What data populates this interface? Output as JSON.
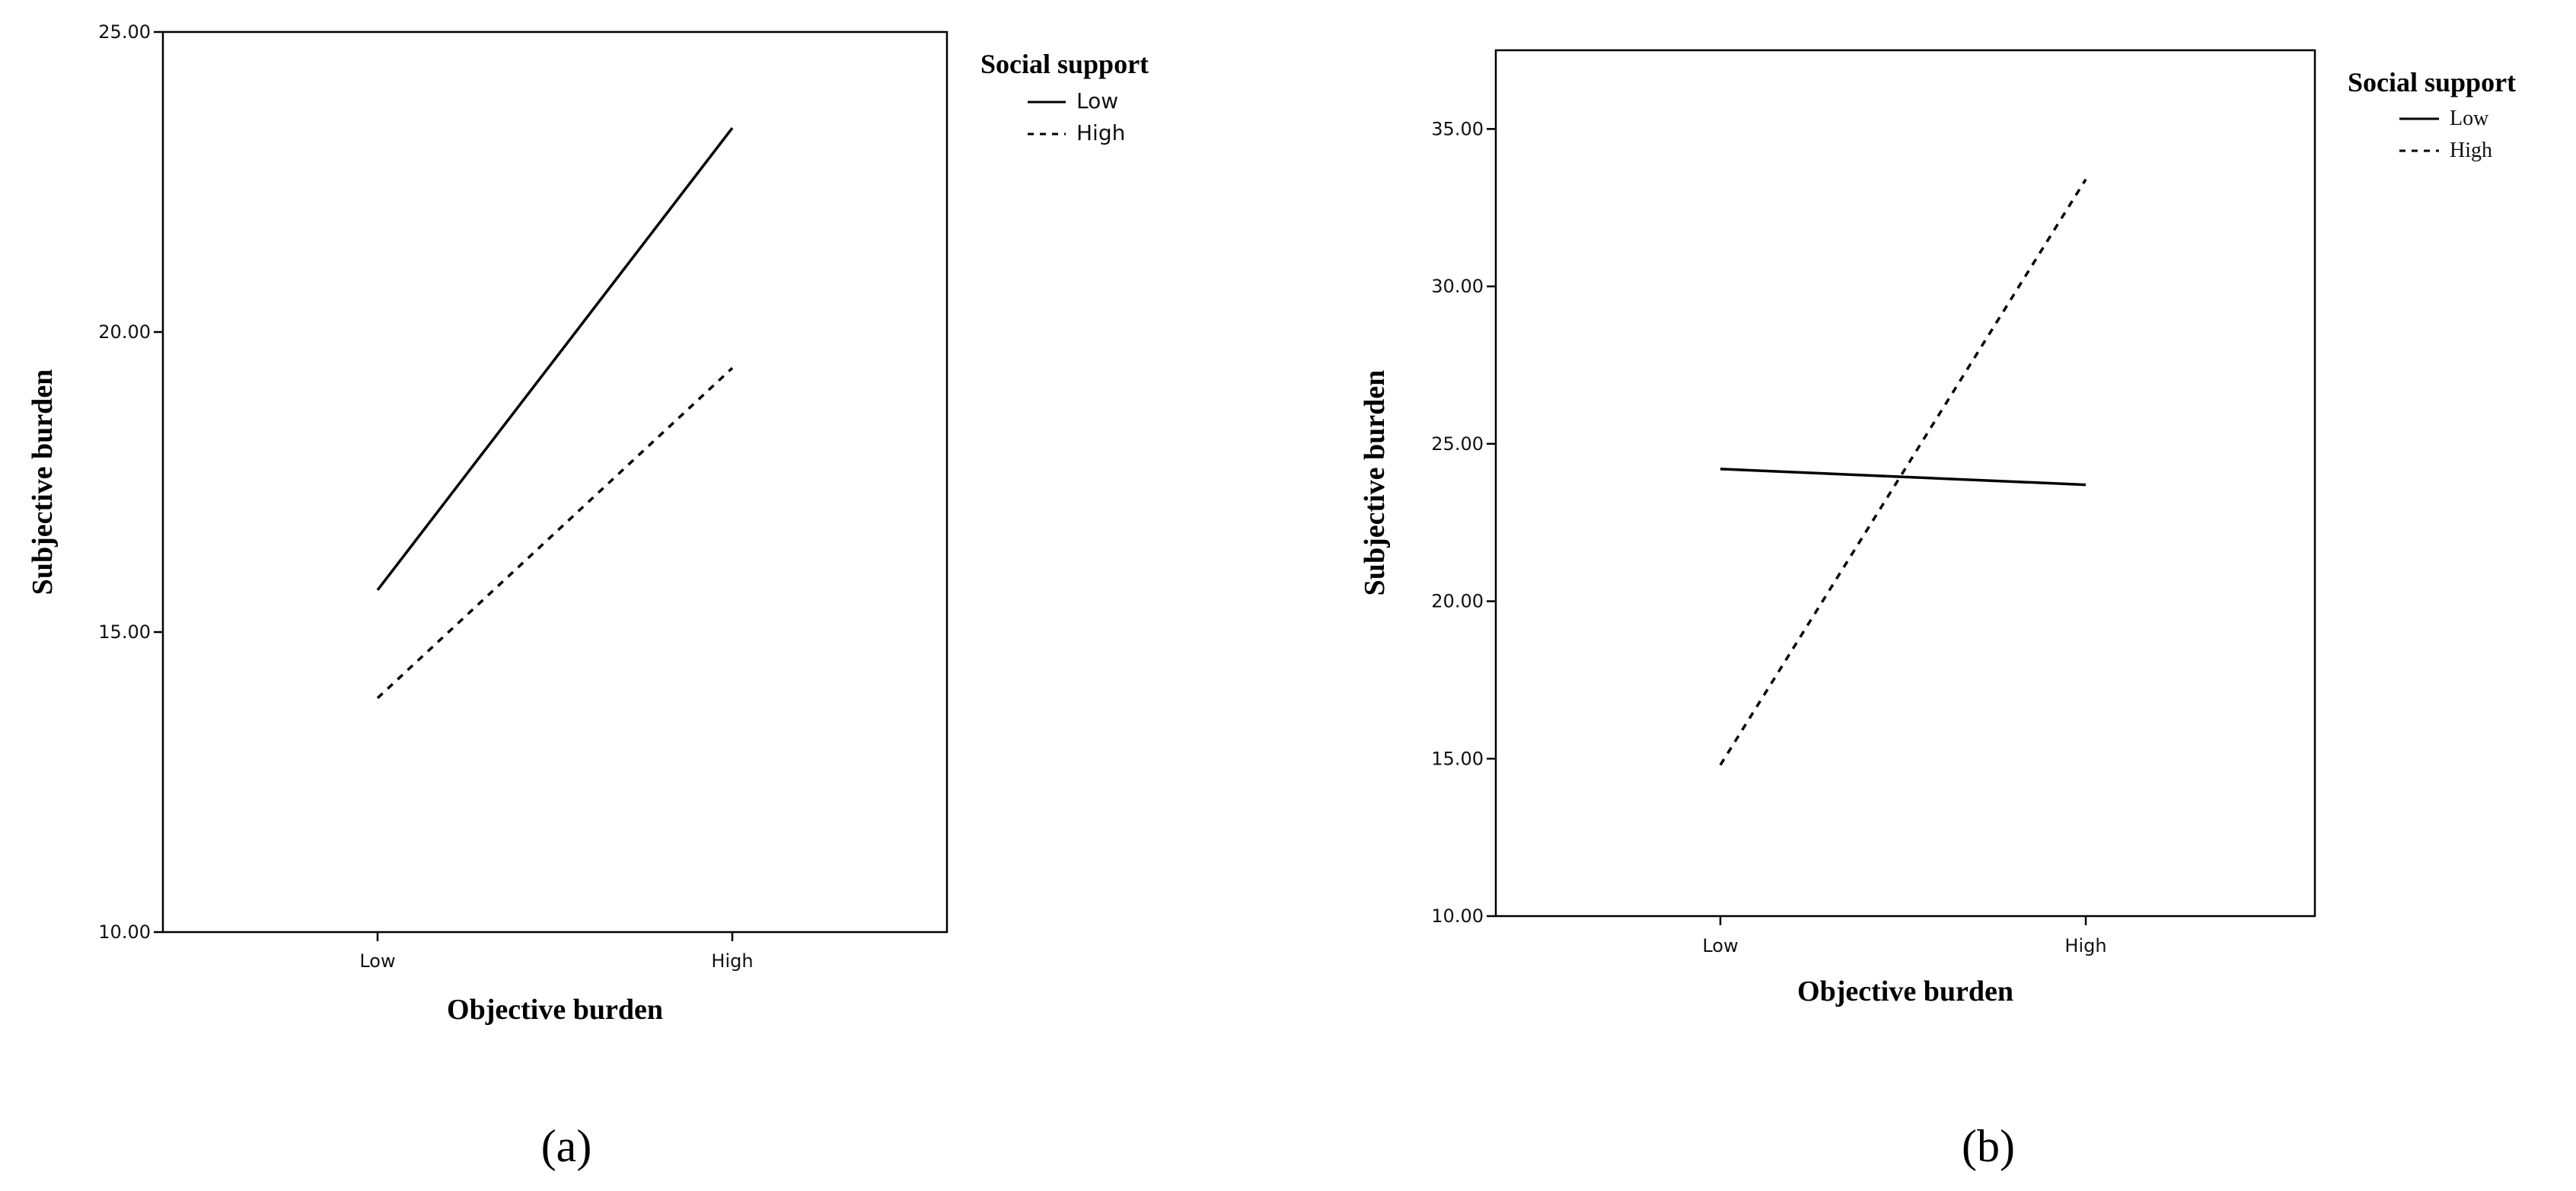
{
  "chart_data": [
    {
      "type": "line",
      "panel_label": "(a)",
      "categories": [
        "Low",
        "High"
      ],
      "xlabel": "Objective burden",
      "ylabel": "Subjective burden",
      "ylim": [
        10,
        25
      ],
      "yticks": [
        "10.00",
        "15.00",
        "20.00",
        "25.00"
      ],
      "legend_title": "Social support",
      "legend_position": "top-right",
      "series": [
        {
          "name": "Low",
          "style": "solid",
          "values": [
            15.7,
            23.4
          ]
        },
        {
          "name": "High",
          "style": "dashed",
          "values": [
            13.9,
            19.4
          ]
        }
      ]
    },
    {
      "type": "line",
      "panel_label": "(b)",
      "categories": [
        "Low",
        "High"
      ],
      "xlabel": "Objective burden",
      "ylabel": "Subjective burden",
      "ylim": [
        10,
        37.5
      ],
      "yticks": [
        "10.00",
        "15.00",
        "20.00",
        "25.00",
        "30.00",
        "35.00"
      ],
      "legend_title": "Social support",
      "legend_position": "top-right",
      "series": [
        {
          "name": "Low",
          "style": "solid",
          "values": [
            24.2,
            23.7
          ]
        },
        {
          "name": "High",
          "style": "dashed",
          "values": [
            14.8,
            33.4
          ]
        }
      ]
    }
  ],
  "colors": {
    "line": "#000000",
    "axis": "#000000",
    "background": "#ffffff"
  }
}
